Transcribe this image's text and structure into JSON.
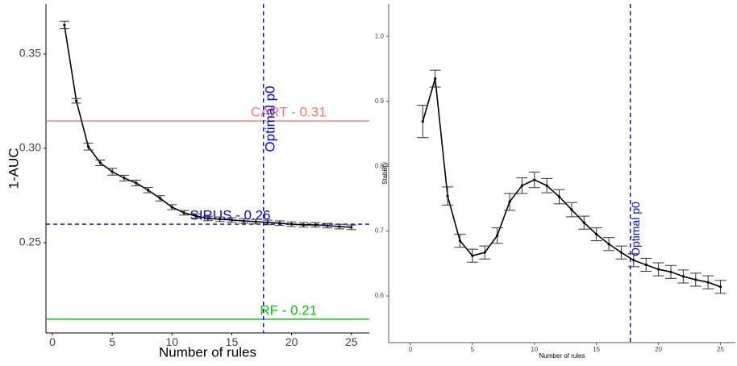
{
  "chart_data": [
    {
      "type": "line",
      "x_label": "Number of rules",
      "y_label": "1-AUC",
      "x": [
        1,
        2,
        3,
        4,
        5,
        6,
        7,
        8,
        9,
        10,
        11,
        12,
        13,
        14,
        15,
        16,
        17,
        18,
        19,
        20,
        21,
        22,
        23,
        24,
        25
      ],
      "values": [
        0.3654,
        0.3252,
        0.3009,
        0.2923,
        0.2876,
        0.2842,
        0.2816,
        0.2778,
        0.2735,
        0.2688,
        0.2658,
        0.2641,
        0.2628,
        0.2624,
        0.262,
        0.2615,
        0.2611,
        0.2607,
        0.2603,
        0.2598,
        0.2594,
        0.2594,
        0.259,
        0.2585,
        0.2581
      ],
      "errors": [
        0.002,
        0.0012,
        0.0018,
        0.0015,
        0.0018,
        0.0015,
        0.0015,
        0.0014,
        0.0014,
        0.0013,
        0.0012,
        0.0012,
        0.0012,
        0.0012,
        0.0012,
        0.0012,
        0.0012,
        0.0012,
        0.0012,
        0.0012,
        0.0012,
        0.0012,
        0.0012,
        0.0012,
        0.0012
      ],
      "color": "#000000",
      "xlim": [
        -0.54,
        26.5
      ],
      "ylim": [
        0.2021,
        0.3765
      ],
      "xticks": [
        0,
        5,
        10,
        15,
        20,
        25
      ],
      "yticks": [
        0.25,
        {
          "value": 0.3,
          "label": "0.30"
        },
        0.35
      ],
      "reference_lines": [
        {
          "orientation": "h",
          "value": 0.3145,
          "label": "CART - 0.31",
          "color": "#f8766d",
          "dashed": false
        },
        {
          "orientation": "h",
          "value": 0.2598,
          "label": "SIRUS - 0.26",
          "color": "#0000ff",
          "dashed": true
        },
        {
          "orientation": "h",
          "value": 0.2094,
          "label": "RF - 0.21",
          "color": "#00cc00",
          "dashed": false
        },
        {
          "orientation": "v",
          "value": 17.65,
          "label": "Optimal p0",
          "color": "#0000ff",
          "dashed": true
        }
      ]
    },
    {
      "type": "line",
      "x_label": "Number of rules",
      "y_label": "Stability",
      "x": [
        1,
        2,
        3,
        4,
        5,
        6,
        7,
        8,
        9,
        10,
        11,
        12,
        13,
        14,
        15,
        16,
        17,
        18,
        19,
        20,
        21,
        22,
        23,
        24,
        25
      ],
      "values": [
        0.869,
        0.935,
        0.754,
        0.685,
        0.662,
        0.667,
        0.693,
        0.745,
        0.77,
        0.779,
        0.77,
        0.753,
        0.733,
        0.713,
        0.695,
        0.68,
        0.667,
        0.655,
        0.648,
        0.641,
        0.637,
        0.63,
        0.625,
        0.621,
        0.614
      ],
      "errors": [
        0.025,
        0.013,
        0.014,
        0.01,
        0.01,
        0.01,
        0.012,
        0.013,
        0.012,
        0.012,
        0.011,
        0.011,
        0.011,
        0.01,
        0.01,
        0.01,
        0.01,
        0.01,
        0.01,
        0.01,
        0.01,
        0.01,
        0.01,
        0.01,
        0.01
      ],
      "color": "#000000",
      "xlim": [
        -1.75,
        26.2
      ],
      "ylim": [
        0.528,
        1.05
      ],
      "xticks": [
        0,
        5,
        10,
        15,
        20,
        25
      ],
      "yticks": [
        0.6,
        0.7,
        0.8,
        0.9,
        {
          "value": 1,
          "label": "1.0"
        }
      ],
      "reference_lines": [
        {
          "orientation": "v",
          "value": 17.73,
          "label": "Optimal p0",
          "color": "#0000ff",
          "dashed": true
        }
      ]
    }
  ]
}
